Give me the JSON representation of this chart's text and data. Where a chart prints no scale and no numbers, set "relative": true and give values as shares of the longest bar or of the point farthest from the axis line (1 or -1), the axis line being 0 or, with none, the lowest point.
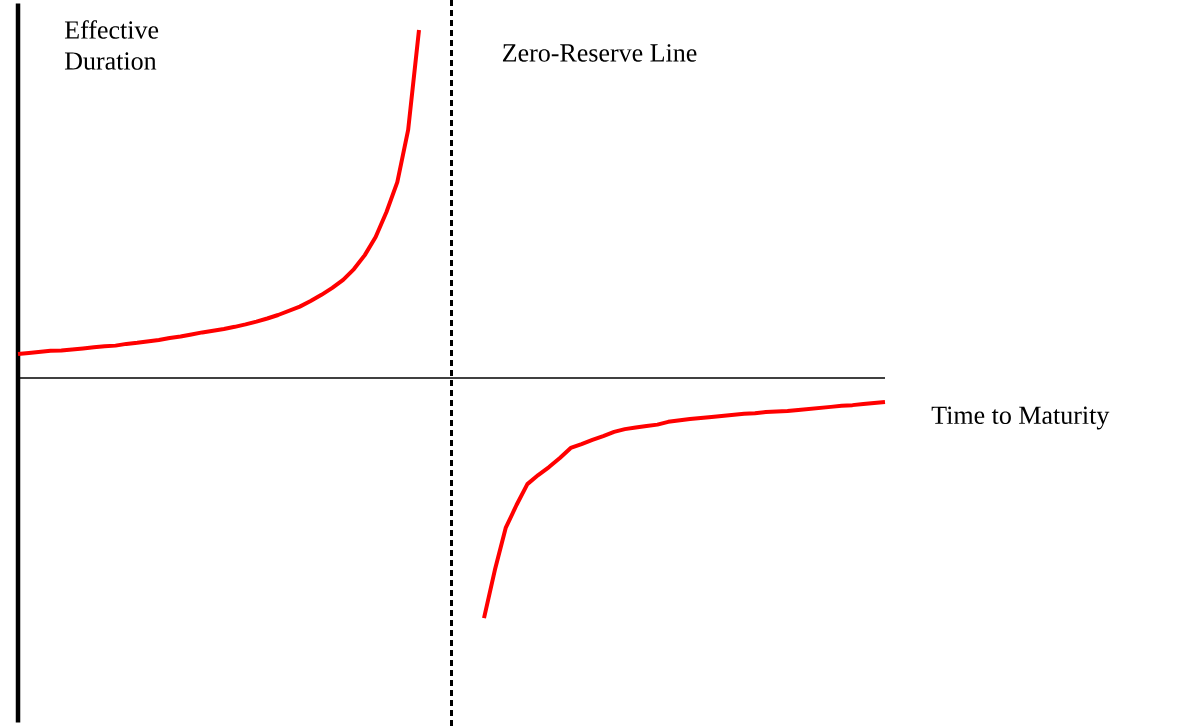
{
  "chart_data": {
    "type": "line",
    "relative": true,
    "xlabel": "Time to Maturity",
    "ylabel": "Effective Duration",
    "categories": [
      null,
      null,
      null,
      null,
      null,
      null,
      null,
      null,
      null,
      null,
      null,
      null,
      null,
      null,
      null,
      null,
      null,
      null,
      null,
      null,
      null,
      null,
      null,
      null,
      null,
      null,
      null,
      null,
      null,
      null,
      null,
      null,
      null,
      null,
      null,
      null,
      null,
      null,
      null,
      null,
      null,
      null,
      null,
      null,
      null,
      null,
      null,
      null,
      null,
      null,
      null,
      null,
      null,
      null,
      null,
      null,
      null,
      null,
      null,
      null,
      null,
      null,
      null,
      null,
      null,
      null,
      null,
      null,
      null,
      null,
      null,
      null,
      null,
      null,
      null,
      null,
      null,
      null,
      null,
      null,
      null
    ],
    "series": [
      {
        "color": "#ff0000",
        "values": [
          0.069,
          0.072,
          0.075,
          0.078,
          0.079,
          0.082,
          0.085,
          0.088,
          0.091,
          0.093,
          0.098,
          0.101,
          0.105,
          0.109,
          0.115,
          0.119,
          0.125,
          0.131,
          0.136,
          0.141,
          0.147,
          0.154,
          0.162,
          0.171,
          0.181,
          0.193,
          0.205,
          0.221,
          0.239,
          0.259,
          0.282,
          0.313,
          0.353,
          0.405,
          0.477,
          0.563,
          0.713,
          1,
          null,
          null,
          null,
          null,
          null,
          null,
          null,
          null,
          null,
          null,
          null,
          null,
          null,
          null,
          null,
          null,
          null,
          null,
          null,
          null,
          null,
          null,
          null,
          null,
          null,
          null,
          null,
          null,
          null,
          null,
          null,
          null,
          null,
          null,
          null,
          null,
          null,
          null,
          null,
          null,
          null,
          null,
          null
        ]
      },
      {
        "color": "#ff0000",
        "values": [
          null,
          null,
          null,
          null,
          null,
          null,
          null,
          null,
          null,
          null,
          null,
          null,
          null,
          null,
          null,
          null,
          null,
          null,
          null,
          null,
          null,
          null,
          null,
          null,
          null,
          null,
          null,
          null,
          null,
          null,
          null,
          null,
          null,
          null,
          null,
          null,
          null,
          null,
          null,
          null,
          null,
          null,
          null,
          -0.69,
          -0.552,
          -0.431,
          -0.365,
          -0.305,
          -0.279,
          -0.256,
          -0.23,
          -0.201,
          -0.19,
          -0.178,
          -0.167,
          -0.155,
          -0.147,
          -0.142,
          -0.138,
          -0.134,
          -0.126,
          -0.122,
          -0.118,
          -0.115,
          -0.112,
          -0.109,
          -0.106,
          -0.103,
          -0.101,
          -0.098,
          -0.096,
          -0.095,
          -0.092,
          -0.089,
          -0.086,
          -0.083,
          -0.08,
          -0.078,
          -0.075,
          -0.072,
          -0.069
        ]
      }
    ],
    "annotations": [
      "Zero-Reserve Line"
    ]
  }
}
